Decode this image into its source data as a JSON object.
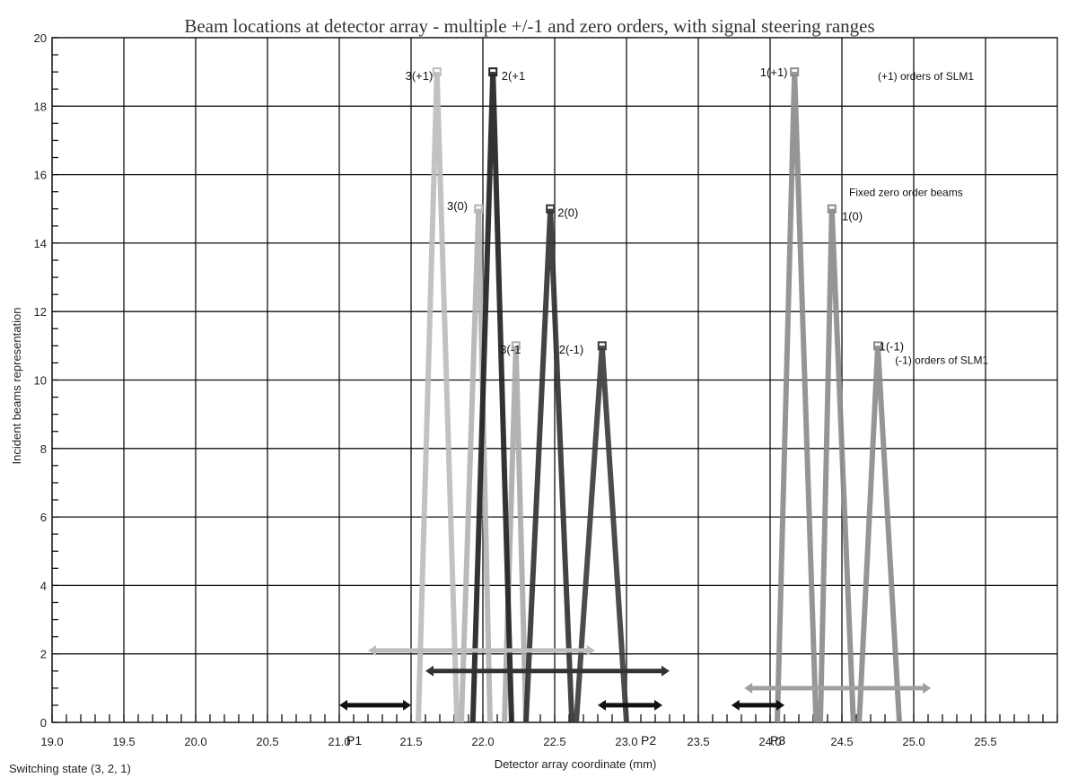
{
  "chart_data": {
    "type": "line",
    "title": "Beam locations at detector array - multiple +/-1 and zero orders, with signal steering ranges",
    "xlabel": "Detector array coordinate (mm)",
    "ylabel": "Incident beams representation",
    "footer": "Switching state (3, 2, 1)",
    "xlim": [
      19.0,
      26.0
    ],
    "ylim": [
      0,
      20
    ],
    "x_ticks": [
      "19.0",
      "19.5",
      "20.0",
      "20.5",
      "21.0",
      "21.5",
      "22.0",
      "22.5",
      "23.0",
      "23.5",
      "24.0",
      "24.5",
      "25.0",
      "25.5"
    ],
    "y_ticks": [
      "0",
      "2",
      "4",
      "6",
      "8",
      "10",
      "12",
      "14",
      "16",
      "18",
      "20"
    ],
    "grid": true,
    "series": [
      {
        "name": "3(+1)",
        "color": "#bdbdbd",
        "x": [
          21.55,
          21.68,
          21.82
        ],
        "y": [
          0,
          19,
          0
        ]
      },
      {
        "name": "3(0)",
        "color": "#b4b4b4",
        "x": [
          21.85,
          21.97,
          22.05
        ],
        "y": [
          0,
          15,
          0
        ]
      },
      {
        "name": "3(-1)",
        "color": "#ababab",
        "x": [
          22.15,
          22.23,
          22.3
        ],
        "y": [
          0,
          11,
          0
        ]
      },
      {
        "name": "2(+1)",
        "color": "#222222",
        "x": [
          21.93,
          22.07,
          22.2
        ],
        "y": [
          0,
          19,
          0
        ]
      },
      {
        "name": "2(0)",
        "color": "#333333",
        "x": [
          22.3,
          22.47,
          22.62
        ],
        "y": [
          0,
          15,
          0
        ]
      },
      {
        "name": "2(-1)",
        "color": "#3d3d3d",
        "x": [
          22.65,
          22.83,
          23.0
        ],
        "y": [
          0,
          11,
          0
        ]
      },
      {
        "name": "1(+1)",
        "color": "#8c8c8c",
        "x": [
          24.05,
          24.17,
          24.32
        ],
        "y": [
          0,
          19,
          0
        ]
      },
      {
        "name": "1(0)",
        "color": "#8c8c8c",
        "x": [
          24.35,
          24.43,
          24.58
        ],
        "y": [
          0,
          15,
          0
        ]
      },
      {
        "name": "1(-1)",
        "color": "#8c8c8c",
        "x": [
          24.62,
          24.75,
          24.9
        ],
        "y": [
          0,
          11,
          0
        ]
      }
    ],
    "peak_labels": [
      {
        "text": "3(+1)",
        "x": 21.46,
        "y": 18.9
      },
      {
        "text": "2(+1",
        "x": 22.13,
        "y": 18.9
      },
      {
        "text": "3(0)",
        "x": 21.75,
        "y": 15.1
      },
      {
        "text": "2(0)",
        "x": 22.52,
        "y": 14.9
      },
      {
        "text": "3(-1",
        "x": 22.12,
        "y": 10.9
      },
      {
        "text": "2(-1)",
        "x": 22.53,
        "y": 10.9
      },
      {
        "text": "1(+1)",
        "x": 23.93,
        "y": 19.0
      },
      {
        "text": "1(0)",
        "x": 24.5,
        "y": 14.8
      },
      {
        "text": "1(-1)",
        "x": 24.76,
        "y": 11.0
      }
    ],
    "annotations": [
      {
        "text": "(+1) orders of SLM1",
        "x": 24.75,
        "y": 18.9
      },
      {
        "text": "Fixed zero order beams",
        "x": 24.55,
        "y": 15.5
      },
      {
        "text": "(-1) orders of SLM1",
        "x": 24.87,
        "y": 10.6
      }
    ],
    "steering_ranges": [
      {
        "color": "#bdbdbd",
        "x": [
          21.2,
          22.78
        ],
        "y": 2.1
      },
      {
        "color": "#333333",
        "x": [
          21.6,
          23.3
        ],
        "y": 1.5
      },
      {
        "color": "#a0a0a0",
        "x": [
          23.82,
          25.12
        ],
        "y": 1.0
      },
      {
        "color": "#111111",
        "x": [
          21.0,
          21.5
        ],
        "y": 0.5
      },
      {
        "color": "#111111",
        "x": [
          22.8,
          23.25
        ],
        "y": 0.5
      },
      {
        "color": "#111111",
        "x": [
          23.73,
          24.1
        ],
        "y": 0.5
      }
    ],
    "position_labels": [
      {
        "text": "P1",
        "x": 21.05
      },
      {
        "text": "P2",
        "x": 23.1
      },
      {
        "text": "P3",
        "x": 24.0
      }
    ]
  }
}
